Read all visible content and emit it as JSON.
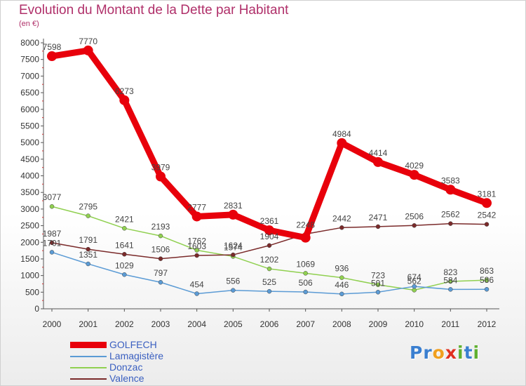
{
  "chart_data": {
    "type": "line",
    "title": "Evolution du Montant de la Dette par Habitant",
    "subtitle": "(en €)",
    "x": [
      "2000",
      "2001",
      "2002",
      "2003",
      "2004",
      "2005",
      "2006",
      "2007",
      "2008",
      "2009",
      "2010",
      "2011",
      "2012"
    ],
    "ylim": [
      0,
      8000
    ],
    "yticks": [
      0,
      500,
      1000,
      1500,
      2000,
      2500,
      3000,
      3500,
      4000,
      4500,
      5000,
      5500,
      6000,
      6500,
      7000,
      7500,
      8000
    ],
    "grid": false,
    "legend_position": "bottom-left",
    "series": [
      {
        "name": "GOLFECH",
        "color": "#e8000b",
        "values": [
          7598,
          7770,
          6273,
          3979,
          2777,
          2831,
          2361,
          2140,
          4984,
          4414,
          4029,
          3583,
          3181
        ],
        "labels": [
          "7598",
          "7770",
          "6273",
          "3979",
          "2777",
          "2831",
          "2361",
          "",
          "4984",
          "4414",
          "4029",
          "3583",
          "3181"
        ]
      },
      {
        "name": "Lamagistère",
        "color": "#5b9bd5",
        "values": [
          1701,
          1351,
          1029,
          797,
          454,
          556,
          525,
          506,
          446,
          501,
          674,
          584,
          586
        ],
        "labels": [
          "1701",
          "1351",
          "1029",
          "797",
          "454",
          "556",
          "525",
          "506",
          "446",
          "501",
          "674",
          "584",
          "586"
        ]
      },
      {
        "name": "Donzac",
        "color": "#90d050",
        "values": [
          3077,
          2795,
          2421,
          2193,
          1762,
          1574,
          1202,
          1069,
          936,
          723,
          562,
          823,
          863
        ],
        "labels": [
          "3077",
          "2795",
          "2421",
          "2193",
          "1762",
          "1574",
          "1202",
          "1069",
          "936",
          "723",
          "562",
          "823",
          "863"
        ]
      },
      {
        "name": "Valence",
        "color": "#7a2a2a",
        "values": [
          1987,
          1791,
          1641,
          1506,
          1603,
          1624,
          1904,
          2248,
          2442,
          2471,
          2506,
          2562,
          2542
        ],
        "labels": [
          "1987",
          "1791",
          "1641",
          "1506",
          "1603",
          "1624",
          "1904",
          "2248",
          "2442",
          "2471",
          "2506",
          "2562",
          "2542"
        ]
      }
    ]
  },
  "logo": {
    "letters": [
      {
        "char": "P",
        "color": "#3a7fd0"
      },
      {
        "char": "r",
        "color": "#3a7fd0"
      },
      {
        "char": "o",
        "color": "#f0a020"
      },
      {
        "char": "x",
        "color": "#e03020"
      },
      {
        "char": "i",
        "color": "#60b030"
      },
      {
        "char": "t",
        "color": "#3a7fd0"
      },
      {
        "char": "i",
        "color": "#60b030"
      }
    ]
  }
}
